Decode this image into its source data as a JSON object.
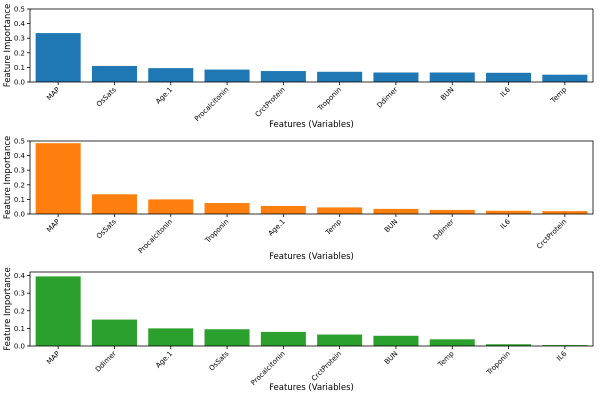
{
  "chart_data": [
    {
      "type": "bar",
      "xlabel": "Features (Variables)",
      "ylabel": "Feature Importance",
      "color": "#1f77b4",
      "categories": [
        "MAP",
        "OsSats",
        "Age.1",
        "Procalcitonin",
        "CrctProtein",
        "Troponin",
        "Ddimer",
        "BUN",
        "IL6",
        "Temp"
      ],
      "values": [
        0.335,
        0.11,
        0.095,
        0.085,
        0.075,
        0.07,
        0.065,
        0.065,
        0.063,
        0.05
      ],
      "ylim": [
        0,
        0.5
      ],
      "yticks": [
        {
          "value": 0,
          "label": "0.0"
        },
        {
          "value": 0.1,
          "label": "0.1"
        },
        {
          "value": 0.2,
          "label": "0.2"
        },
        {
          "value": 0.3,
          "label": "0.3"
        },
        {
          "value": 0.4,
          "label": "0.4"
        },
        {
          "value": 0.5,
          "label": "0.5"
        }
      ]
    },
    {
      "type": "bar",
      "xlabel": "Features (Variables)",
      "ylabel": "Feature Importance",
      "color": "#ff7f0e",
      "categories": [
        "MAP",
        "OsSats",
        "Procalcitonin",
        "Troponin",
        "Age.1",
        "Temp",
        "BUN",
        "Ddimer",
        "IL6",
        "CrctProtein"
      ],
      "values": [
        0.485,
        0.135,
        0.1,
        0.075,
        0.055,
        0.045,
        0.035,
        0.028,
        0.022,
        0.02
      ],
      "ylim": [
        0,
        0.5
      ],
      "yticks": [
        {
          "value": 0,
          "label": "0.0"
        },
        {
          "value": 0.1,
          "label": "0.1"
        },
        {
          "value": 0.2,
          "label": "0.2"
        },
        {
          "value": 0.3,
          "label": "0.3"
        },
        {
          "value": 0.4,
          "label": "0.4"
        },
        {
          "value": 0.5,
          "label": "0.5"
        }
      ]
    },
    {
      "type": "bar",
      "xlabel": "Features (Variables)",
      "ylabel": "Feature Importance",
      "color": "#2ca02c",
      "categories": [
        "MAP",
        "Ddimer",
        "Age.1",
        "OsSats",
        "Procalcitonin",
        "CrctProtein",
        "BUN",
        "Temp",
        "Troponin",
        "IL6"
      ],
      "values": [
        0.395,
        0.15,
        0.1,
        0.095,
        0.08,
        0.065,
        0.058,
        0.038,
        0.01,
        0.005
      ],
      "ylim": [
        0,
        0.42
      ],
      "yticks": [
        {
          "value": 0,
          "label": "0.0"
        },
        {
          "value": 0.1,
          "label": "0.1"
        },
        {
          "value": 0.2,
          "label": "0.2"
        },
        {
          "value": 0.3,
          "label": "0.3"
        },
        {
          "value": 0.4,
          "label": "0.4"
        }
      ]
    }
  ]
}
